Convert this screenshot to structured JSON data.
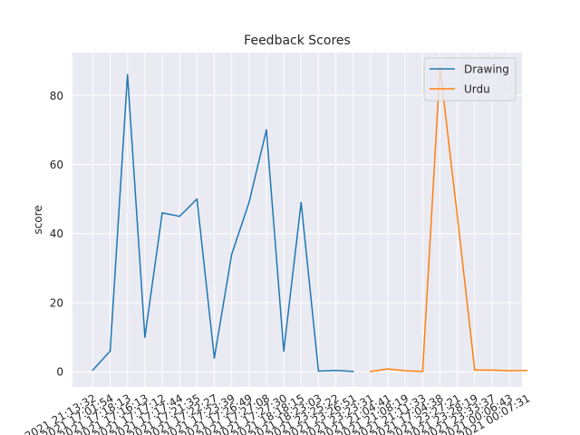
{
  "chart_data": {
    "type": "line",
    "title": "Feedback Scores",
    "xlabel": "",
    "ylabel": "score",
    "ylim": [
      -4.4,
      92.4
    ],
    "yticks": [
      0,
      20,
      40,
      60,
      80
    ],
    "grid": true,
    "legend_position": "top-right",
    "x": [
      "2021 21:13:32",
      "2021 17:01:54",
      "2021 17:18:13",
      "2021 17:16:13",
      "2021 17:17:12",
      "2021 17:17:44",
      "2021 17:21:35",
      "2021 17:22:27",
      "2021 17:23:39",
      "2021 17:26:49",
      "2021 17:27:08",
      "2021 17:27:30",
      "2021 18:18:15",
      "2021 18:23:03",
      "2021 23:25:22",
      "2021 23:26:51",
      "2021 23:23:31",
      "2021 21:04:41",
      "2021 21:08:19",
      "2021 21:11:33",
      "2021 17:04:38",
      "2021 23:27:21",
      "2021 23:28:19",
      "2021 23:33:37",
      "2021 00:06:43",
      "2021 00:07:31"
    ],
    "series": [
      {
        "name": "Drawing",
        "color": "#1f77b4",
        "values": [
          0.5,
          6,
          86,
          10,
          46,
          45,
          50,
          4,
          34,
          49,
          70,
          6,
          49,
          0.2,
          0.4,
          0.1,
          null,
          null,
          null,
          null,
          null,
          null,
          null,
          null,
          null,
          null
        ]
      },
      {
        "name": "Urdu",
        "color": "#ff7f0e",
        "values": [
          null,
          null,
          null,
          null,
          null,
          null,
          null,
          null,
          null,
          null,
          null,
          null,
          null,
          null,
          null,
          null,
          0.1,
          0.8,
          0.3,
          0.1,
          88,
          45,
          0.5,
          0.5,
          0.3,
          0.4
        ]
      }
    ]
  }
}
